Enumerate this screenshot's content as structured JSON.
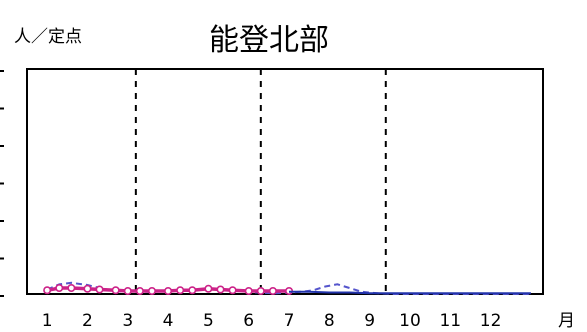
{
  "chart_data": {
    "type": "line",
    "title": "能登北部",
    "ylabel": "人／定点",
    "xlabel": "月",
    "x_ticks": [
      "1",
      "2",
      "3",
      "4",
      "5",
      "6",
      "7",
      "8",
      "9",
      "10",
      "11",
      "12"
    ],
    "xlim": [
      0.5,
      13.3
    ],
    "ylim": [
      0,
      30
    ],
    "grid": false,
    "vertical_dashed_lines_at_month": [
      3.2,
      6.3,
      9.4
    ],
    "series": [
      {
        "name": "",
        "style": "dashed",
        "color": "#5555cc",
        "x": [
          1.0,
          1.3,
          1.6,
          2.0,
          2.3,
          2.7,
          3.0,
          3.5,
          4.0,
          4.5,
          4.9,
          5.3,
          5.8,
          6.2,
          6.7,
          7.0,
          7.3,
          7.6,
          7.9,
          8.2,
          8.5,
          8.8,
          9.2,
          9.6,
          10.0,
          10.5,
          11.0,
          11.5,
          12.0,
          12.5,
          13.0
        ],
        "y": [
          0.6,
          1.3,
          1.5,
          1.2,
          0.8,
          0.4,
          0.3,
          0.3,
          0.4,
          0.5,
          0.7,
          0.6,
          0.4,
          0.2,
          0.1,
          0.2,
          0.3,
          0.5,
          1.0,
          1.3,
          0.8,
          0.3,
          0.1,
          0.0,
          0.0,
          0.0,
          0.0,
          0.0,
          0.0,
          0.0,
          0.0
        ]
      },
      {
        "name": "",
        "style": "solid-with-markers",
        "color": "#cc2288",
        "x": [
          1.0,
          1.3,
          1.6,
          2.0,
          2.3,
          2.7,
          3.0,
          3.3,
          3.6,
          4.0,
          4.3,
          4.6,
          5.0,
          5.3,
          5.6,
          6.0,
          6.3,
          6.6,
          7.0
        ],
        "y": [
          0.5,
          0.8,
          0.8,
          0.7,
          0.6,
          0.5,
          0.4,
          0.4,
          0.4,
          0.4,
          0.5,
          0.5,
          0.7,
          0.6,
          0.5,
          0.4,
          0.4,
          0.4,
          0.4
        ]
      },
      {
        "name": "",
        "style": "solid",
        "color": "#2233aa",
        "x": [
          7.0,
          7.5,
          8.0,
          8.5,
          9.0,
          9.5,
          10.0,
          10.5,
          11.0,
          11.5,
          12.0,
          12.5,
          13.0
        ],
        "y": [
          0.3,
          0.3,
          0.2,
          0.2,
          0.1,
          0.1,
          0.1,
          0.1,
          0.1,
          0.1,
          0.1,
          0.1,
          0.1
        ]
      }
    ]
  }
}
